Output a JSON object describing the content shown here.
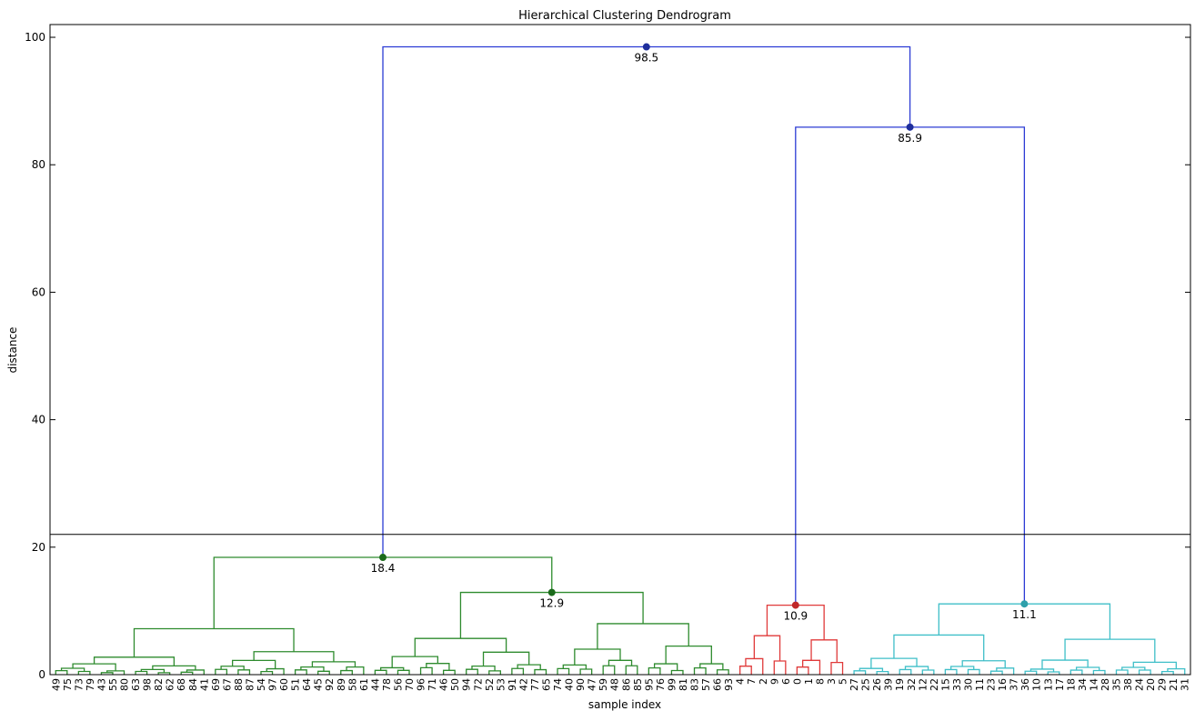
{
  "chart_data": {
    "type": "dendrogram",
    "title": "Hierarchical Clustering Dendrogram",
    "xlabel": "sample index",
    "ylabel": "distance",
    "ylim": [
      0,
      102
    ],
    "yticks": [
      0,
      20,
      40,
      60,
      80,
      100
    ],
    "cut_line": 22,
    "grid": false,
    "leaves": [
      "49",
      "75",
      "73",
      "79",
      "43",
      "55",
      "80",
      "63",
      "98",
      "82",
      "62",
      "68",
      "84",
      "41",
      "69",
      "67",
      "88",
      "87",
      "54",
      "97",
      "60",
      "51",
      "64",
      "45",
      "92",
      "89",
      "58",
      "61",
      "44",
      "78",
      "56",
      "70",
      "96",
      "71",
      "46",
      "50",
      "94",
      "72",
      "52",
      "53",
      "91",
      "42",
      "77",
      "65",
      "74",
      "40",
      "90",
      "47",
      "59",
      "48",
      "86",
      "85",
      "95",
      "76",
      "99",
      "81",
      "83",
      "57",
      "66",
      "93",
      "4",
      "7",
      "2",
      "9",
      "6",
      "0",
      "1",
      "8",
      "3",
      "5",
      "27",
      "25",
      "26",
      "39",
      "19",
      "32",
      "12",
      "22",
      "15",
      "33",
      "30",
      "11",
      "23",
      "16",
      "37",
      "36",
      "10",
      "13",
      "17",
      "18",
      "34",
      "14",
      "28",
      "35",
      "38",
      "24",
      "20",
      "29",
      "21",
      "31"
    ],
    "clusters": [
      {
        "name": "cluster-green",
        "color": "#2e8b2e",
        "leaf_range": [
          0,
          59
        ],
        "merge_height": 18.4
      },
      {
        "name": "cluster-red",
        "color": "#e03a3a",
        "leaf_range": [
          60,
          69
        ],
        "merge_height": 10.9
      },
      {
        "name": "cluster-cyan",
        "color": "#3fbfc8",
        "leaf_range": [
          70,
          99
        ],
        "merge_height": 11.1
      }
    ],
    "top_links": [
      {
        "children": [
          "cluster-green",
          "link-85.9"
        ],
        "height": 98.5,
        "id": "link-98.5"
      },
      {
        "children": [
          "cluster-red",
          "cluster-cyan"
        ],
        "height": 85.9,
        "id": "link-85.9"
      }
    ],
    "green_subclusters": {
      "left_height": 7.2,
      "right_height": 12.9
    },
    "annotations": [
      {
        "value": 98.5,
        "label": "98.5",
        "color": "#1f2f9c"
      },
      {
        "value": 85.9,
        "label": "85.9",
        "color": "#1f2f9c"
      },
      {
        "value": 18.4,
        "label": "18.4",
        "color": "#1b6b1b"
      },
      {
        "value": 12.9,
        "label": "12.9",
        "color": "#1b6b1b"
      },
      {
        "value": 10.9,
        "label": "10.9",
        "color": "#c0282a"
      },
      {
        "value": 11.1,
        "label": "11.1",
        "color": "#2ea0aa"
      }
    ],
    "link_color": "#2b3bd4"
  }
}
